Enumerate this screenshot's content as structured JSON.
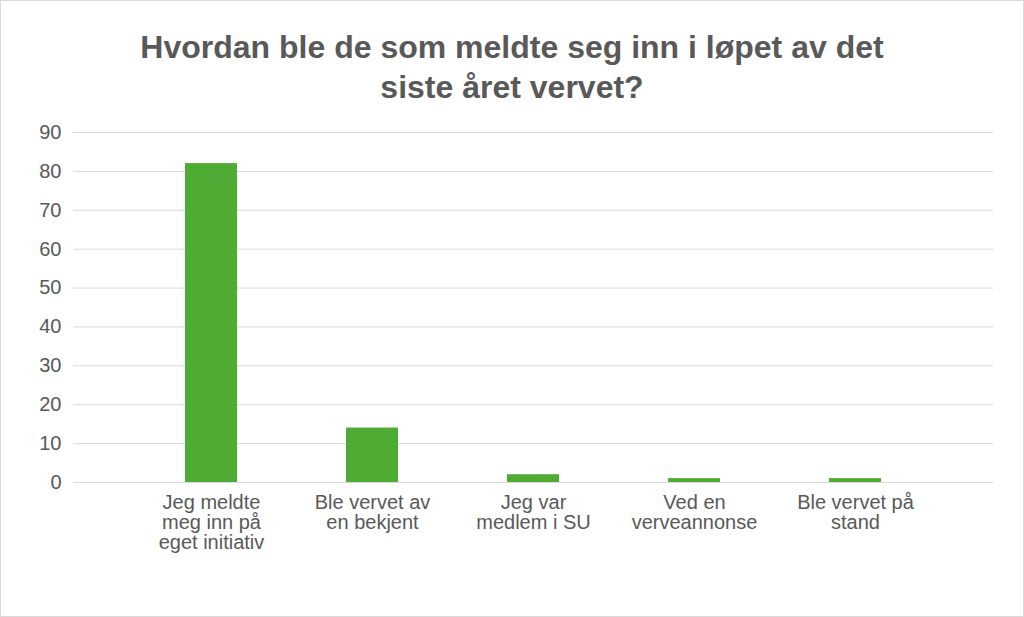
{
  "chart_data": {
    "type": "bar",
    "title": "Hvordan ble de som meldte seg inn i løpet av det siste året vervet?",
    "categories": [
      "Jeg meldte meg inn på eget initiativ",
      "Ble vervet av en bekjent",
      "Jeg var medlem i SU",
      "Ved en verveannonse",
      "Ble vervet på stand"
    ],
    "values": [
      82,
      14,
      2,
      1,
      1
    ],
    "color": "#4eac34",
    "ylim": [
      0,
      90
    ],
    "yticks": [
      0,
      10,
      20,
      30,
      40,
      50,
      60,
      70,
      80,
      90
    ],
    "grid": true
  }
}
